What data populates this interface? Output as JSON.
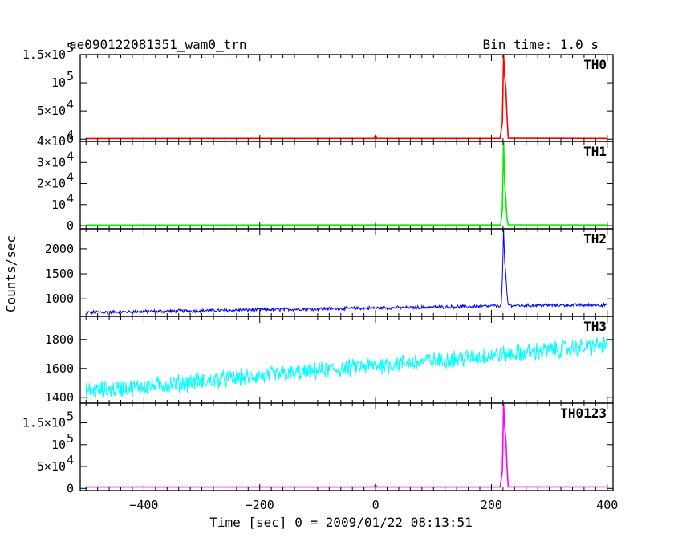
{
  "header": {
    "title": "ae090122081351_wam0_trn",
    "bin_time": "Bin time: 1.0 s"
  },
  "chart_data": {
    "type": "line",
    "title": "ae090122081351_wam0_trn",
    "xlabel": "Time [sec] 0 = 2009/01/22 08:13:51",
    "ylabel": "Counts/sec",
    "xlim": [
      -510,
      410
    ],
    "x_ticks": [
      {
        "value": -400,
        "label": "−400"
      },
      {
        "value": -200,
        "label": "−200"
      },
      {
        "value": 0,
        "label": "0"
      },
      {
        "value": 200,
        "label": "200"
      },
      {
        "value": 400,
        "label": "400"
      }
    ],
    "panels": [
      {
        "name": "TH0",
        "color": "#ff0000",
        "ylim": [
          -4000,
          150000
        ],
        "yticks": [
          {
            "value": 0,
            "label": "0"
          },
          {
            "value": 50000,
            "label": "5×10",
            "sup": "4"
          },
          {
            "value": 100000,
            "label": "10",
            "sup": "5"
          },
          {
            "value": 150000,
            "label": "1.5×10",
            "sup": "5"
          }
        ],
        "points": [
          [
            -500,
            1200
          ],
          [
            -10,
            1300
          ],
          [
            -2,
            1300
          ],
          [
            0,
            6500
          ],
          [
            2,
            1300
          ],
          [
            215,
            1300
          ],
          [
            219,
            30000
          ],
          [
            221,
            150000
          ],
          [
            223,
            110000
          ],
          [
            225,
            90000
          ],
          [
            227,
            40000
          ],
          [
            229,
            1500
          ],
          [
            400,
            1300
          ]
        ]
      },
      {
        "name": "TH1",
        "color": "#00ee00",
        "ylim": [
          -1500,
          40000
        ],
        "yticks": [
          {
            "value": 0,
            "label": "0"
          },
          {
            "value": 10000,
            "label": "10",
            "sup": "4"
          },
          {
            "value": 20000,
            "label": "2×10",
            "sup": "4"
          },
          {
            "value": 30000,
            "label": "3×10",
            "sup": "4"
          },
          {
            "value": 40000,
            "label": "4×10",
            "sup": "4"
          }
        ],
        "points": [
          [
            -500,
            300
          ],
          [
            -2,
            320
          ],
          [
            0,
            600
          ],
          [
            2,
            320
          ],
          [
            216,
            320
          ],
          [
            219,
            8000
          ],
          [
            221,
            40000
          ],
          [
            223,
            20000
          ],
          [
            225,
            12000
          ],
          [
            227,
            3000
          ],
          [
            229,
            400
          ],
          [
            400,
            320
          ]
        ]
      },
      {
        "name": "TH2",
        "color": "#0000ff",
        "ylim": [
          650,
          2400
        ],
        "yticks": [
          {
            "value": 1000,
            "label": "1000"
          },
          {
            "value": 1500,
            "label": "1500"
          },
          {
            "value": 2000,
            "label": "2000"
          }
        ],
        "noise": {
          "start": 730,
          "end": 870,
          "amp": 30
        },
        "points": [
          [
            -500,
            730
          ],
          [
            200,
            855
          ],
          [
            217,
            870
          ],
          [
            219,
            1400
          ],
          [
            221,
            2400
          ],
          [
            223,
            1700
          ],
          [
            225,
            1450
          ],
          [
            227,
            1100
          ],
          [
            229,
            880
          ],
          [
            240,
            870
          ],
          [
            400,
            880
          ]
        ]
      },
      {
        "name": "TH3",
        "color": "#00ffff",
        "ylim": [
          1360,
          1960
        ],
        "yticks": [
          {
            "value": 1400,
            "label": "1400"
          },
          {
            "value": 1600,
            "label": "1600"
          },
          {
            "value": 1800,
            "label": "1800"
          }
        ],
        "noise": {
          "start": 1440,
          "end": 1760,
          "amp": 55
        },
        "points": [
          [
            -500,
            1440
          ],
          [
            400,
            1760
          ]
        ]
      },
      {
        "name": "TH0123",
        "color": "#ff00ff",
        "ylim": [
          -5000,
          195000
        ],
        "yticks": [
          {
            "value": 0,
            "label": "0"
          },
          {
            "value": 50000,
            "label": "5×10",
            "sup": "4"
          },
          {
            "value": 100000,
            "label": "10",
            "sup": "5"
          },
          {
            "value": 150000,
            "label": "1.5×10",
            "sup": "5"
          }
        ],
        "points": [
          [
            -500,
            3000
          ],
          [
            -2,
            3100
          ],
          [
            0,
            9000
          ],
          [
            2,
            3100
          ],
          [
            215,
            3100
          ],
          [
            219,
            40000
          ],
          [
            221,
            195000
          ],
          [
            223,
            140000
          ],
          [
            225,
            110000
          ],
          [
            227,
            50000
          ],
          [
            229,
            3500
          ],
          [
            400,
            3200
          ]
        ]
      }
    ]
  }
}
